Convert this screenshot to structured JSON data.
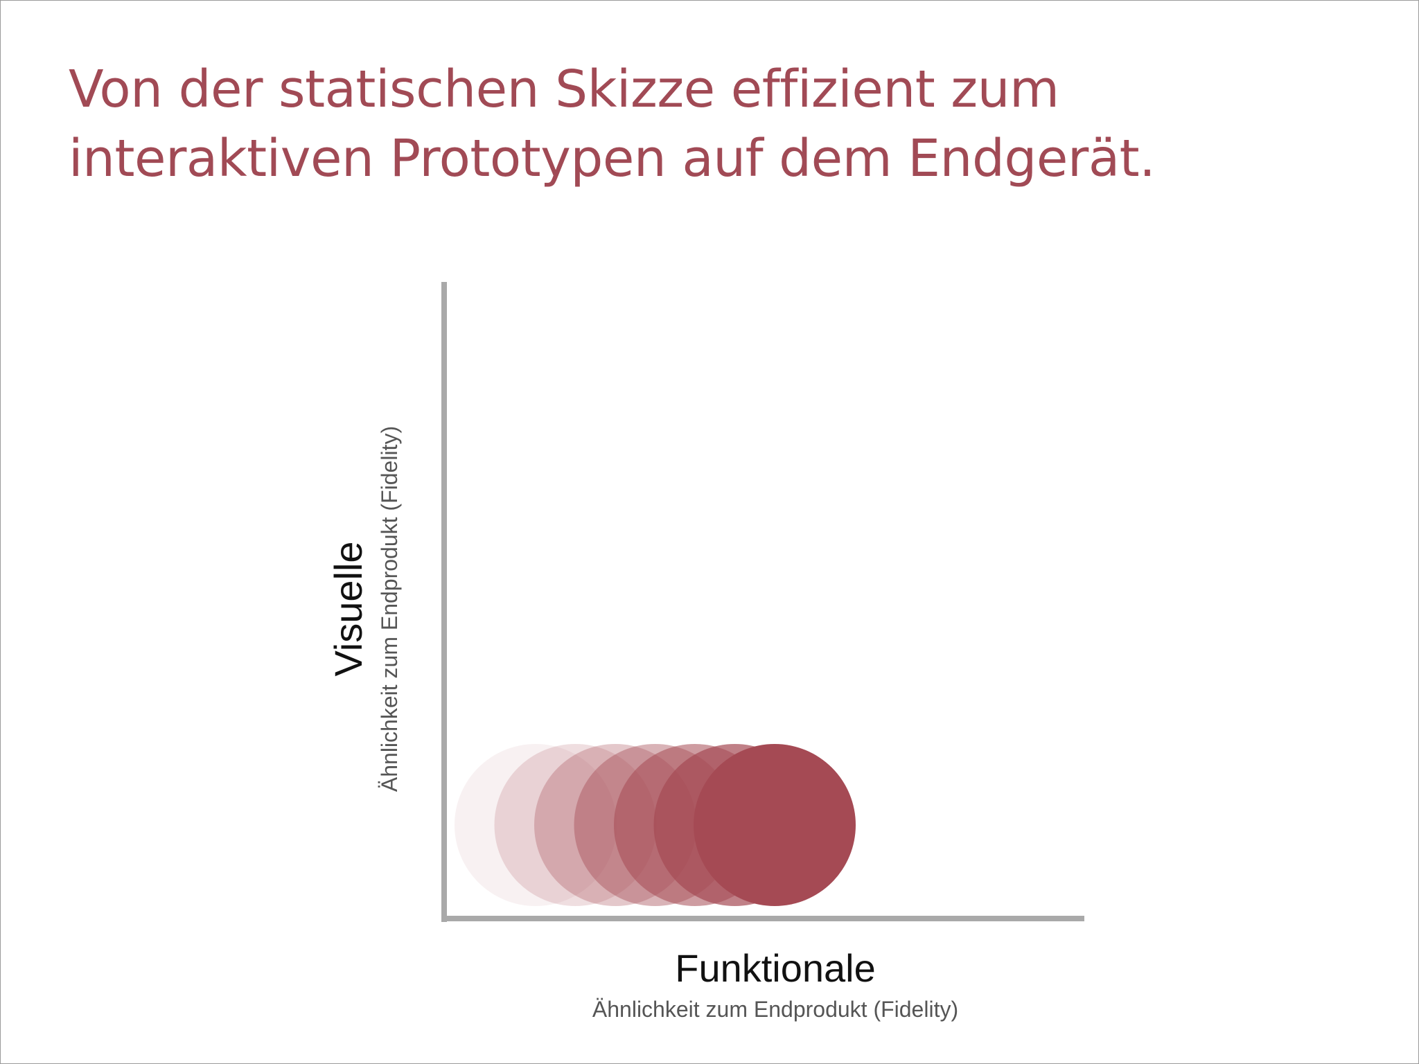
{
  "slide": {
    "title_line1": "Von der statischen Skizze effizient zum",
    "title_line2": "interaktiven Prototypen auf dem Endgerät."
  },
  "diagram": {
    "x_axis": {
      "label": "Funktionale",
      "sublabel": "Ähnlichkeit zum Endprodukt (Fidelity)"
    },
    "y_axis": {
      "label": "Visuelle",
      "sublabel": "Ähnlichkeit zum Endprodukt (Fidelity)"
    },
    "circles": {
      "count": 7,
      "color": "#a54a54",
      "opacities": [
        0.08,
        0.18,
        0.3,
        0.42,
        0.55,
        0.7,
        1.0
      ]
    },
    "axis_color": "#a9a9a9"
  }
}
